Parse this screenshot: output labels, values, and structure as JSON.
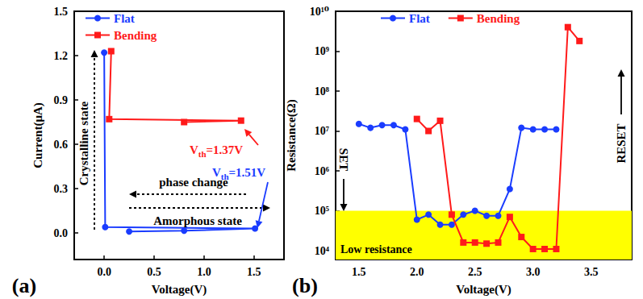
{
  "chart_data": [
    {
      "type": "line",
      "panel_label": "(a)",
      "x_label": "Voltage(V)",
      "y_label": "Current(μA)",
      "xlim": [
        -0.3,
        1.8
      ],
      "xticks": [
        {
          "value": 0,
          "label": "0.0"
        },
        0.5,
        {
          "value": 1,
          "label": "1.0"
        },
        1.5
      ],
      "ylim": [
        -0.18,
        1.5
      ],
      "yticks": [
        {
          "value": 0,
          "label": "0.0"
        },
        0.3,
        0.6,
        0.9,
        1.2,
        1.5
      ],
      "grid": false,
      "legend": "upper left",
      "series": [
        {
          "name": "Flat",
          "color": "#1a3cff",
          "marker": "circle",
          "line_style": "solid",
          "x": [
            0.25,
            0.8,
            1.51,
            0.01,
            0.0
          ],
          "values": [
            0.01,
            0.015,
            0.03,
            0.04,
            1.22
          ]
        },
        {
          "name": "Bending",
          "color": "#ff1a1a",
          "marker": "square",
          "line_style": "solid",
          "x": [
            0.8,
            1.37,
            0.05,
            0.07
          ],
          "values": [
            0.75,
            0.76,
            0.77,
            1.23
          ]
        }
      ],
      "annotations": [
        {
          "text": "Crystalline state"
        },
        {
          "text": "phase change"
        },
        {
          "text": "Amorphous state"
        },
        {
          "text": "Vth=1.37V",
          "subscript": "th",
          "color": "#ff1a1a"
        },
        {
          "text": "Vth=1.51V",
          "subscript": "th",
          "color": "#1a3cff"
        }
      ]
    },
    {
      "type": "line",
      "panel_label": "(b)",
      "x_label": "Voltage(V)",
      "y_label": "Resistance(Ω)",
      "log": "y",
      "xlim": [
        1.3,
        3.85
      ],
      "xticks": [
        1.5,
        {
          "value": 2,
          "label": "2.0"
        },
        2.5,
        {
          "value": 3,
          "label": "3.0"
        },
        3.5
      ],
      "ylim": [
        6000,
        10000000000
      ],
      "yticks": [
        {
          "value": 10000,
          "label": "10⁴"
        },
        {
          "value": 100000,
          "label": "10⁵"
        },
        {
          "value": 1000000,
          "label": "10⁶"
        },
        {
          "value": 10000000,
          "label": "10⁷"
        },
        {
          "value": 100000000,
          "label": "10⁸"
        },
        {
          "value": 1000000000,
          "label": "10⁹"
        },
        {
          "value": 10000000000,
          "label": "10¹⁰"
        }
      ],
      "grid": false,
      "legend": "upper left",
      "band": {
        "label": "Low resistance",
        "max": 100000,
        "color": "#ffff00"
      },
      "series": [
        {
          "name": "Flat",
          "color": "#1a3cff",
          "marker": "circle",
          "line_style": "solid",
          "x": [
            1.5,
            1.6,
            1.7,
            1.8,
            1.9,
            2.0,
            2.1,
            2.2,
            2.3,
            2.4,
            2.5,
            2.6,
            2.7,
            2.8,
            2.9,
            3.0,
            3.1,
            3.2
          ],
          "values": [
            15000000,
            12000000,
            14000000,
            14000000,
            11000000,
            60000,
            80000,
            45000,
            45000,
            80000,
            100000,
            75000,
            75000,
            350000,
            12000000,
            11000000,
            11000000,
            11000000
          ]
        },
        {
          "name": "Bending",
          "color": "#ff1a1a",
          "marker": "square",
          "line_style": "solid",
          "x": [
            2.0,
            2.1,
            2.2,
            2.3,
            2.4,
            2.5,
            2.6,
            2.7,
            2.8,
            2.9,
            3.0,
            3.1,
            3.2,
            3.3,
            3.4
          ],
          "values": [
            20000000,
            10000000,
            18000000,
            80000,
            16000,
            16000,
            15000,
            16000,
            70000,
            22000,
            11000,
            11000,
            11000,
            4000000000,
            1800000000
          ]
        }
      ],
      "annotations": [
        {
          "text": "SET"
        },
        {
          "text": "RESET"
        }
      ]
    }
  ]
}
